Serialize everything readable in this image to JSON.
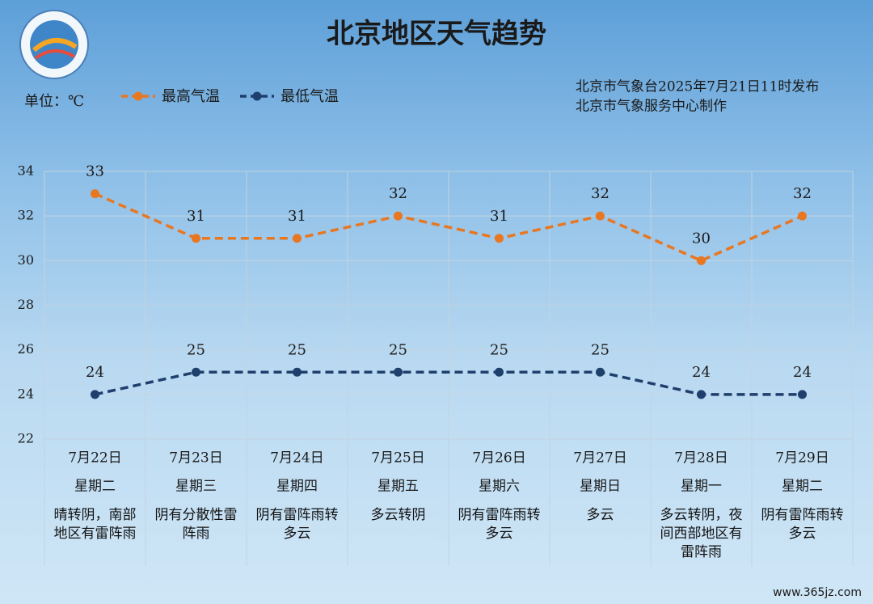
{
  "chart_data": {
    "type": "line",
    "title": "北京地区天气趋势",
    "unit_label": "单位：℃",
    "issuer": "北京市气象台2025年7月21日11时发布",
    "producer": "北京市气象服务中心制作",
    "watermark": "www.365jz.com",
    "categories": [
      "7月22日",
      "7月23日",
      "7月24日",
      "7月25日",
      "7月26日",
      "7月27日",
      "7月28日",
      "7月29日"
    ],
    "weekdays": [
      "星期二",
      "星期三",
      "星期四",
      "星期五",
      "星期六",
      "星期日",
      "星期一",
      "星期二"
    ],
    "weather": [
      "晴转阴，南部地区有雷阵雨",
      "阴有分散性雷阵雨",
      "阴有雷阵雨转多云",
      "多云转阴",
      "阴有雷阵雨转多云",
      "多云",
      "多云转阴，夜间西部地区有雷阵雨",
      "阴有雷阵雨转多云"
    ],
    "series": [
      {
        "name": "最高气温",
        "color": "#e87722",
        "values": [
          33,
          31,
          31,
          32,
          31,
          32,
          30,
          32
        ]
      },
      {
        "name": "最低气温",
        "color": "#1f3f6d",
        "values": [
          24,
          25,
          25,
          25,
          25,
          25,
          24,
          24
        ]
      }
    ],
    "ylim": [
      22,
      34
    ],
    "yticks": [
      22,
      24,
      26,
      28,
      30,
      32,
      34
    ],
    "grid": true
  }
}
